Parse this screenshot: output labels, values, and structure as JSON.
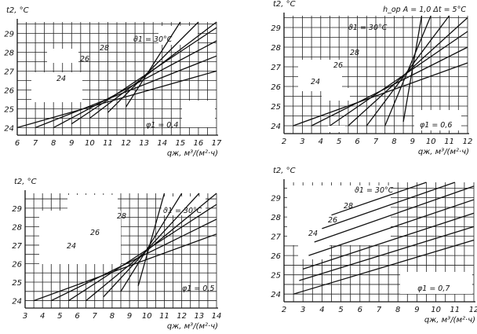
{
  "chart_data": [
    {
      "type": "line",
      "title": "",
      "ylabel": "t2, °C",
      "xlabel": "qж, м³/(м²·ч)",
      "x": [
        6,
        7,
        8,
        9,
        10,
        11,
        12,
        13,
        14,
        15,
        16,
        17
      ],
      "xlim": [
        6,
        17
      ],
      "ylim": [
        23.6,
        29.6
      ],
      "yticks": [
        24,
        25,
        26,
        27,
        28,
        29
      ],
      "temperature_labels": [
        "ϑ1 = 30°C",
        "28",
        "26",
        "24"
      ],
      "param_label": "φ1 = 0,4",
      "grid": true,
      "series": [
        {
          "values": [
            [
              6,
              24.0
            ],
            [
              17,
              27.0
            ]
          ]
        },
        {
          "values": [
            [
              7,
              24.0
            ],
            [
              17,
              27.8
            ]
          ]
        },
        {
          "values": [
            [
              8,
              24.0
            ],
            [
              17,
              28.6
            ]
          ]
        },
        {
          "values": [
            [
              9,
              24.2
            ],
            [
              17,
              29.3
            ]
          ]
        },
        {
          "values": [
            [
              10,
              24.5
            ],
            [
              17,
              29.6
            ]
          ]
        },
        {
          "values": [
            [
              11,
              24.8
            ],
            [
              16,
              29.6
            ]
          ]
        },
        {
          "values": [
            [
              12,
              25.1
            ],
            [
              15,
              29.6
            ]
          ]
        }
      ]
    },
    {
      "type": "line",
      "title": "h_op A = 1,0  Δt = 5°C",
      "ylabel": "t2, °C",
      "xlabel": "qж, м³/(м²·ч)",
      "x": [
        2,
        3,
        4,
        5,
        6,
        7,
        8,
        9,
        10,
        11,
        12
      ],
      "xlim": [
        2,
        12
      ],
      "ylim": [
        23.6,
        29.6
      ],
      "yticks": [
        24,
        25,
        26,
        27,
        28,
        29
      ],
      "temperature_labels": [
        "ϑ1 = 30°C",
        "28",
        "26",
        "24"
      ],
      "param_label": "φ1 = 0,6",
      "grid": true,
      "series": [
        {
          "values": [
            [
              2.5,
              24.0
            ],
            [
              12,
              27.2
            ]
          ]
        },
        {
          "values": [
            [
              3.5,
              24.0
            ],
            [
              12,
              28.0
            ]
          ]
        },
        {
          "values": [
            [
              4.5,
              24.0
            ],
            [
              12,
              28.8
            ]
          ]
        },
        {
          "values": [
            [
              5.5,
              24.0
            ],
            [
              12,
              29.5
            ]
          ]
        },
        {
          "values": [
            [
              6.5,
              24.0
            ],
            [
              11,
              29.6
            ]
          ]
        },
        {
          "values": [
            [
              7.5,
              24.0
            ],
            [
              10,
              29.6
            ]
          ]
        },
        {
          "values": [
            [
              8.5,
              24.2
            ],
            [
              9.5,
              29.6
            ]
          ]
        }
      ]
    },
    {
      "type": "line",
      "title": "",
      "ylabel": "t2, °C",
      "xlabel": "qж, м³/(м²·ч)",
      "x": [
        3,
        4,
        5,
        6,
        7,
        8,
        9,
        10,
        11,
        12,
        13,
        14
      ],
      "xlim": [
        3,
        14
      ],
      "ylim": [
        23.6,
        29.8
      ],
      "yticks": [
        24,
        25,
        26,
        27,
        28,
        29
      ],
      "temperature_labels": [
        "ϑ1 = 30°C",
        "28",
        "26",
        "24"
      ],
      "param_label": "φ1 = 0,5",
      "grid": true,
      "series": [
        {
          "values": [
            [
              3.5,
              24.0
            ],
            [
              14,
              27.6
            ]
          ]
        },
        {
          "values": [
            [
              4.5,
              24.0
            ],
            [
              14,
              28.4
            ]
          ]
        },
        {
          "values": [
            [
              5.5,
              24.0
            ],
            [
              14,
              29.2
            ]
          ]
        },
        {
          "values": [
            [
              6.5,
              24.0
            ],
            [
              14,
              29.8
            ]
          ]
        },
        {
          "values": [
            [
              7.5,
              24.2
            ],
            [
              13,
              29.8
            ]
          ]
        },
        {
          "values": [
            [
              8.5,
              24.5
            ],
            [
              12,
              29.8
            ]
          ]
        },
        {
          "values": [
            [
              9.5,
              24.8
            ],
            [
              11,
              29.8
            ]
          ]
        }
      ]
    },
    {
      "type": "line",
      "title": "",
      "ylabel": "t2, °C",
      "xlabel": "qж, м³/(м²·ч)",
      "x": [
        2,
        3,
        4,
        5,
        6,
        7,
        8,
        9,
        10,
        11,
        12
      ],
      "xlim": [
        2,
        12
      ],
      "ylim": [
        23.6,
        29.8
      ],
      "yticks": [
        24,
        25,
        26,
        27,
        28,
        29
      ],
      "temperature_labels": [
        "ϑ1 = 30°C",
        "28",
        "26",
        "24"
      ],
      "param_label": "φ1 = 0,7",
      "grid": true,
      "series": [
        {
          "values": [
            [
              2.5,
              24.0
            ],
            [
              12,
              26.8
            ]
          ]
        },
        {
          "values": [
            [
              2.8,
              24.7
            ],
            [
              12,
              27.5
            ]
          ]
        },
        {
          "values": [
            [
              3.0,
              25.3
            ],
            [
              12,
              28.2
            ]
          ]
        },
        {
          "values": [
            [
              3.3,
              26.0
            ],
            [
              12,
              28.9
            ]
          ]
        },
        {
          "values": [
            [
              3.6,
              26.7
            ],
            [
              12,
              29.6
            ]
          ]
        },
        {
          "values": [
            [
              4.0,
              27.4
            ],
            [
              11,
              29.8
            ]
          ]
        },
        {
          "values": [
            [
              4.5,
              28.1
            ],
            [
              9.5,
              29.8
            ]
          ]
        }
      ]
    }
  ]
}
